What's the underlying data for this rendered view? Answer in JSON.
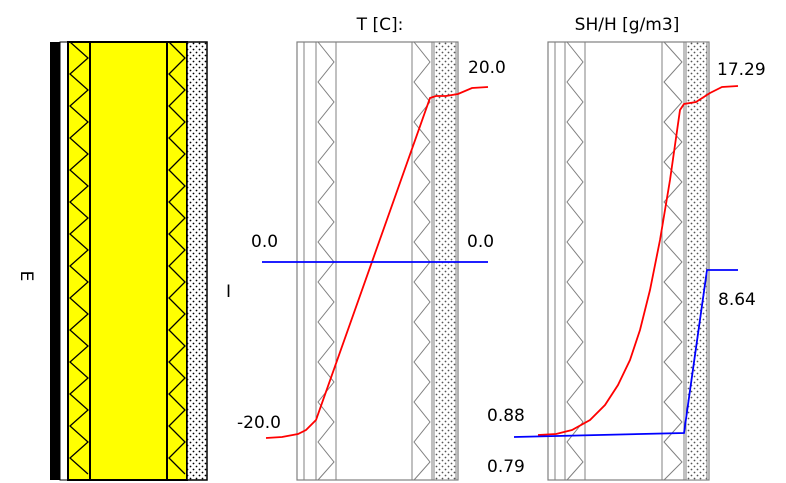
{
  "labels": {
    "outside_side": "E",
    "inside_side": "I"
  },
  "temperature_panel": {
    "title": "T [C]:",
    "top_right_value": "20.0",
    "zero_left_value": "0.0",
    "zero_right_value": "0.0",
    "bottom_left_value": "-20.0"
  },
  "humidity_panel": {
    "title": "SH/H [g/m3]",
    "top_right_value": "17.29",
    "mid_right_value": "8.64",
    "lower_left_value_upper": "0.88",
    "lower_left_value_lower": "0.79"
  },
  "colors": {
    "insulation_fill": "#ffff00",
    "temperature_curve": "#ff0000",
    "zero_line": "#0000ff",
    "saturation_curve": "#ff0000",
    "vapor_curve": "#0000ff",
    "layer_outline": "#000000",
    "panel_outline": "#808080"
  }
}
